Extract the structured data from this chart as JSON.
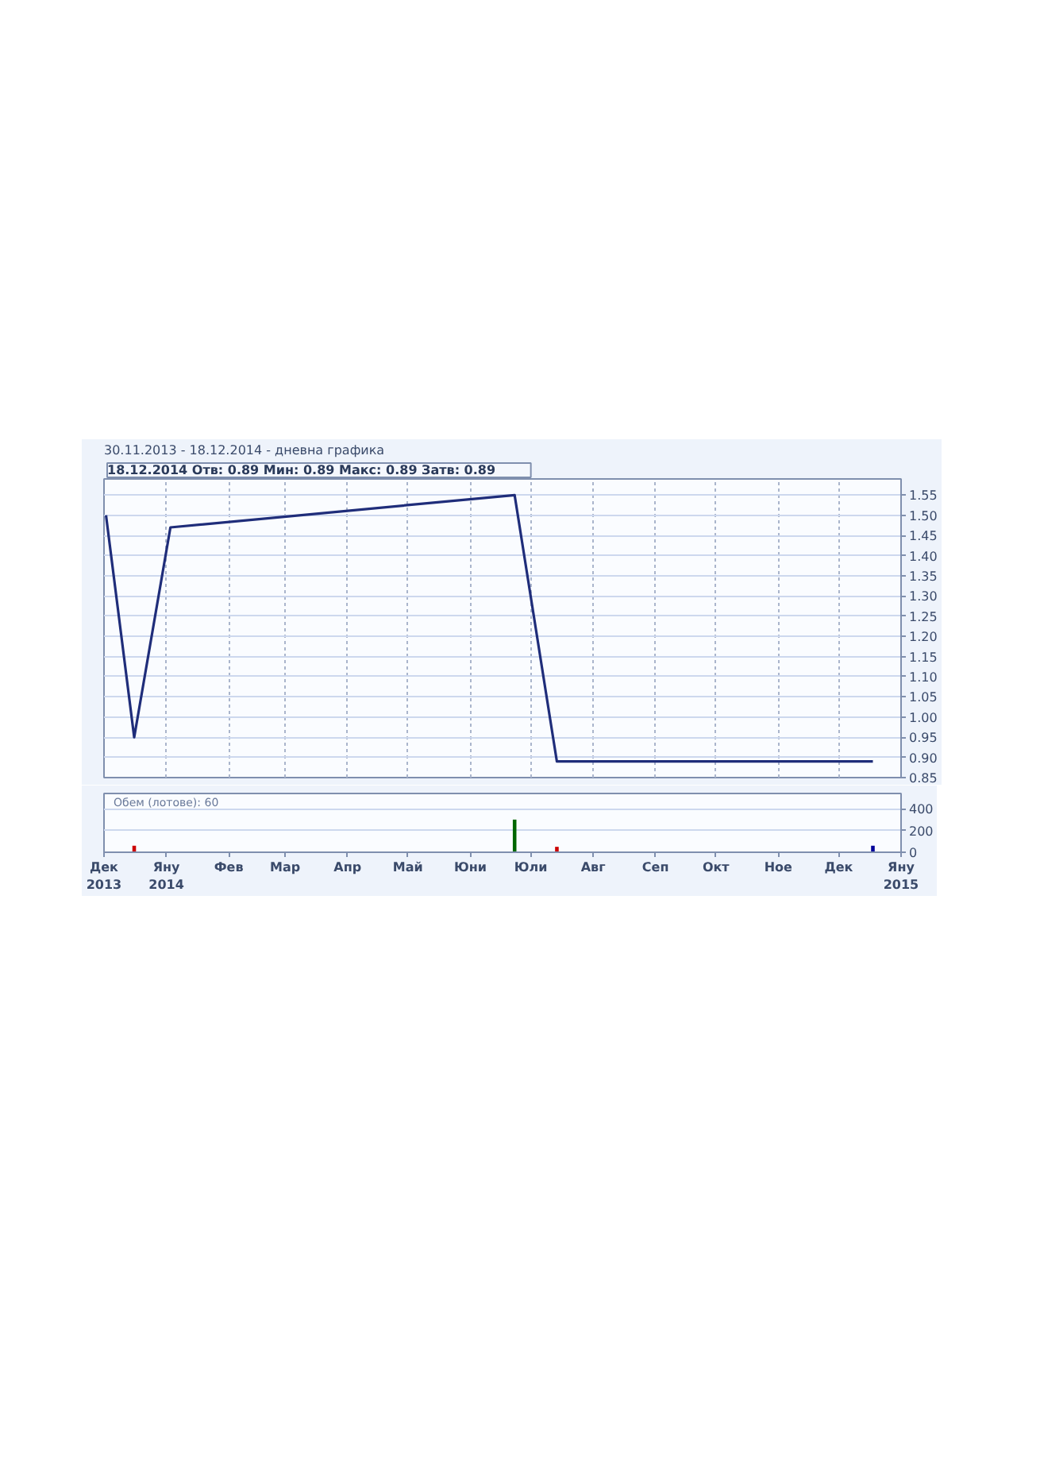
{
  "chart_data": [
    {
      "type": "line",
      "title": "30.11.2013 - 18.12.2014 - дневна графика",
      "subtitle": "18.12.2014   Отв: 0.89   Мин: 0.89   Макс: 0.89   Затв: 0.89",
      "x": [
        "2013-12-02",
        "2013-12-16",
        "2014-01-03",
        "2014-06-23",
        "2014-07-14",
        "2014-12-18"
      ],
      "values": [
        1.5,
        0.95,
        1.47,
        1.55,
        0.89,
        0.89
      ],
      "color": "#1f2d7a",
      "xlim": [
        "2013-12-01",
        "2015-01-01"
      ],
      "xticks": [
        "2013-12-01",
        "2014-01-01",
        "2014-02-01",
        "2014-03-01",
        "2014-04-01",
        "2014-05-01",
        "2014-06-01",
        "2014-07-01",
        "2014-08-01",
        "2014-09-01",
        "2014-10-01",
        "2014-11-01",
        "2014-12-01",
        "2015-01-01"
      ],
      "ylim": [
        0.85,
        1.59
      ],
      "yticks": [
        1.55,
        {
          "value": 1.5,
          "label": "1.50"
        },
        1.45,
        {
          "value": 1.4,
          "label": "1.40"
        },
        1.35,
        {
          "value": 1.3,
          "label": "1.30"
        },
        1.25,
        {
          "value": 1.2,
          "label": "1.20"
        },
        1.15,
        {
          "value": 1.1,
          "label": "1.10"
        },
        1.05,
        {
          "value": 1.0,
          "label": "1.00"
        },
        0.95,
        {
          "value": 0.9,
          "label": "0.90"
        },
        0.85
      ],
      "grid": true,
      "tick_labels": "y"
    },
    {
      "type": "bar",
      "title": "Обем (лотове): 60",
      "x": [
        "2013-12-16",
        "2014-06-23",
        "2014-07-14",
        "2014-12-18"
      ],
      "values": [
        60,
        300,
        50,
        60
      ],
      "colors": [
        "#cc0000",
        "#006600",
        "#cc0000",
        "#000099"
      ],
      "xlim": [
        "2013-12-01",
        "2015-01-01"
      ],
      "xticks": [
        {
          "value": "2013-12-01",
          "label": "Дек\n2013"
        },
        {
          "value": "2014-01-01",
          "label": "Яну\n2014"
        },
        {
          "value": "2014-02-01",
          "label": "Фев"
        },
        {
          "value": "2014-03-01",
          "label": "Мар"
        },
        {
          "value": "2014-04-01",
          "label": "Апр"
        },
        {
          "value": "2014-05-01",
          "label": "Май"
        },
        {
          "value": "2014-06-01",
          "label": "Юни"
        },
        {
          "value": "2014-07-01",
          "label": "Юли"
        },
        {
          "value": "2014-08-01",
          "label": "Авг"
        },
        {
          "value": "2014-09-01",
          "label": "Сеп"
        },
        {
          "value": "2014-10-01",
          "label": "Окт"
        },
        {
          "value": "2014-11-01",
          "label": "Ное"
        },
        {
          "value": "2014-12-01",
          "label": "Дек"
        },
        {
          "value": "2015-01-01",
          "label": "Яну\n2015"
        }
      ],
      "ylim": [
        0,
        540
      ],
      "yticks": [
        0,
        200,
        400
      ],
      "grid": "y"
    }
  ]
}
